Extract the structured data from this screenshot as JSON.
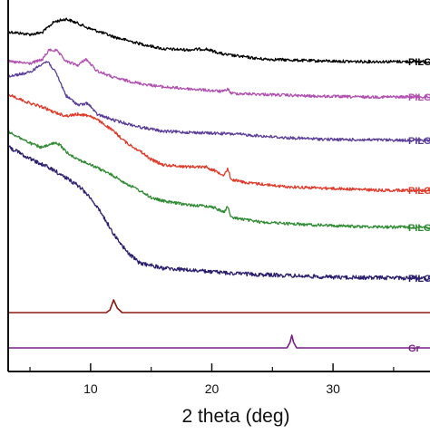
{
  "chart_data": {
    "type": "line",
    "title": "",
    "xlabel": "2 theta (deg)",
    "ylabel": "",
    "xlim": [
      3.2,
      38
    ],
    "x_ticks": [
      10,
      20,
      30
    ],
    "x_minor_ticks": [
      5,
      15,
      25,
      35
    ],
    "grid": false,
    "legend": "inline labels at right edge (cropped)",
    "series": [
      {
        "name": "PILG",
        "color": "#000000",
        "points": [
          [
            3.2,
            35
          ],
          [
            5,
            38
          ],
          [
            6,
            36
          ],
          [
            7,
            24
          ],
          [
            8,
            21
          ],
          [
            9,
            26
          ],
          [
            9.8,
            31
          ],
          [
            10.5,
            34
          ],
          [
            12,
            41
          ],
          [
            14,
            48
          ],
          [
            16,
            54
          ],
          [
            18,
            55
          ],
          [
            19.5,
            54
          ],
          [
            21,
            60
          ],
          [
            24,
            65
          ],
          [
            28,
            67
          ],
          [
            32,
            68
          ],
          [
            38,
            68
          ]
        ]
      },
      {
        "name": "PILG",
        "color": "#b04fb0",
        "points": [
          [
            3.2,
            68
          ],
          [
            5,
            70
          ],
          [
            6,
            66
          ],
          [
            6.6,
            55
          ],
          [
            7.2,
            56
          ],
          [
            8,
            68
          ],
          [
            9,
            72
          ],
          [
            9.6,
            65
          ],
          [
            10.5,
            78
          ],
          [
            12,
            86
          ],
          [
            14,
            92
          ],
          [
            16,
            96
          ],
          [
            18,
            98
          ],
          [
            20,
            100
          ],
          [
            21,
            101
          ],
          [
            21.3,
            98
          ],
          [
            21.6,
            103
          ],
          [
            24,
            104
          ],
          [
            28,
            106
          ],
          [
            32,
            107
          ],
          [
            38,
            107
          ]
        ]
      },
      {
        "name": "PILG",
        "color": "#5a3c99",
        "points": [
          [
            3.2,
            84
          ],
          [
            5,
            80
          ],
          [
            6,
            70
          ],
          [
            6.5,
            68
          ],
          [
            7.2,
            82
          ],
          [
            8,
            106
          ],
          [
            9,
            116
          ],
          [
            9.8,
            114
          ],
          [
            10.5,
            126
          ],
          [
            12,
            133
          ],
          [
            14,
            140
          ],
          [
            16,
            145
          ],
          [
            18,
            146
          ],
          [
            20,
            147
          ],
          [
            22,
            148
          ],
          [
            26,
            152
          ],
          [
            30,
            154
          ],
          [
            38,
            155
          ]
        ]
      },
      {
        "name": "PILG",
        "color": "#e03a2a",
        "points": [
          [
            3.2,
            104
          ],
          [
            5,
            114
          ],
          [
            6,
            118
          ],
          [
            7,
            124
          ],
          [
            8,
            128
          ],
          [
            9,
            126
          ],
          [
            10,
            128
          ],
          [
            11,
            136
          ],
          [
            12,
            146
          ],
          [
            13,
            158
          ],
          [
            14,
            166
          ],
          [
            15,
            176
          ],
          [
            16,
            182
          ],
          [
            18,
            184
          ],
          [
            19.5,
            184
          ],
          [
            21,
            193
          ],
          [
            21.3,
            186
          ],
          [
            21.6,
            198
          ],
          [
            23,
            202
          ],
          [
            24,
            203
          ],
          [
            26,
            206
          ],
          [
            30,
            208
          ],
          [
            34,
            210
          ],
          [
            38,
            210
          ]
        ]
      },
      {
        "name": "PILG",
        "color": "#2e8b32",
        "points": [
          [
            3.2,
            145
          ],
          [
            5,
            158
          ],
          [
            6,
            163
          ],
          [
            7,
            158
          ],
          [
            7.5,
            160
          ],
          [
            8,
            168
          ],
          [
            9,
            176
          ],
          [
            10,
            182
          ],
          [
            11,
            188
          ],
          [
            12,
            195
          ],
          [
            13,
            203
          ],
          [
            14,
            210
          ],
          [
            15,
            218
          ],
          [
            16,
            222
          ],
          [
            18,
            226
          ],
          [
            20,
            228
          ],
          [
            21,
            234
          ],
          [
            21.3,
            228
          ],
          [
            21.6,
            240
          ],
          [
            24,
            245
          ],
          [
            28,
            248
          ],
          [
            32,
            250
          ],
          [
            38,
            251
          ]
        ]
      },
      {
        "name": "PILG",
        "color": "#2a1f6e",
        "points": [
          [
            3.2,
            162
          ],
          [
            5,
            175
          ],
          [
            7,
            188
          ],
          [
            9,
            205
          ],
          [
            10,
            218
          ],
          [
            11,
            238
          ],
          [
            12,
            260
          ],
          [
            13,
            278
          ],
          [
            14,
            290
          ],
          [
            16,
            296
          ],
          [
            18,
            298
          ],
          [
            20,
            300
          ],
          [
            22,
            302
          ],
          [
            26,
            304
          ],
          [
            30,
            306
          ],
          [
            38,
            307
          ]
        ]
      },
      {
        "name": "",
        "color": "#8b1a10",
        "points": [
          [
            3.2,
            345
          ],
          [
            11.3,
            345
          ],
          [
            11.6,
            342
          ],
          [
            11.9,
            331
          ],
          [
            12.2,
            340
          ],
          [
            12.6,
            345
          ],
          [
            38,
            345
          ]
        ]
      },
      {
        "name": "Gr",
        "color": "#7a1f8a",
        "points": [
          [
            3.2,
            384
          ],
          [
            26.2,
            384
          ],
          [
            26.45,
            378
          ],
          [
            26.6,
            370
          ],
          [
            26.75,
            378
          ],
          [
            27,
            384
          ],
          [
            38,
            384
          ]
        ]
      }
    ]
  }
}
